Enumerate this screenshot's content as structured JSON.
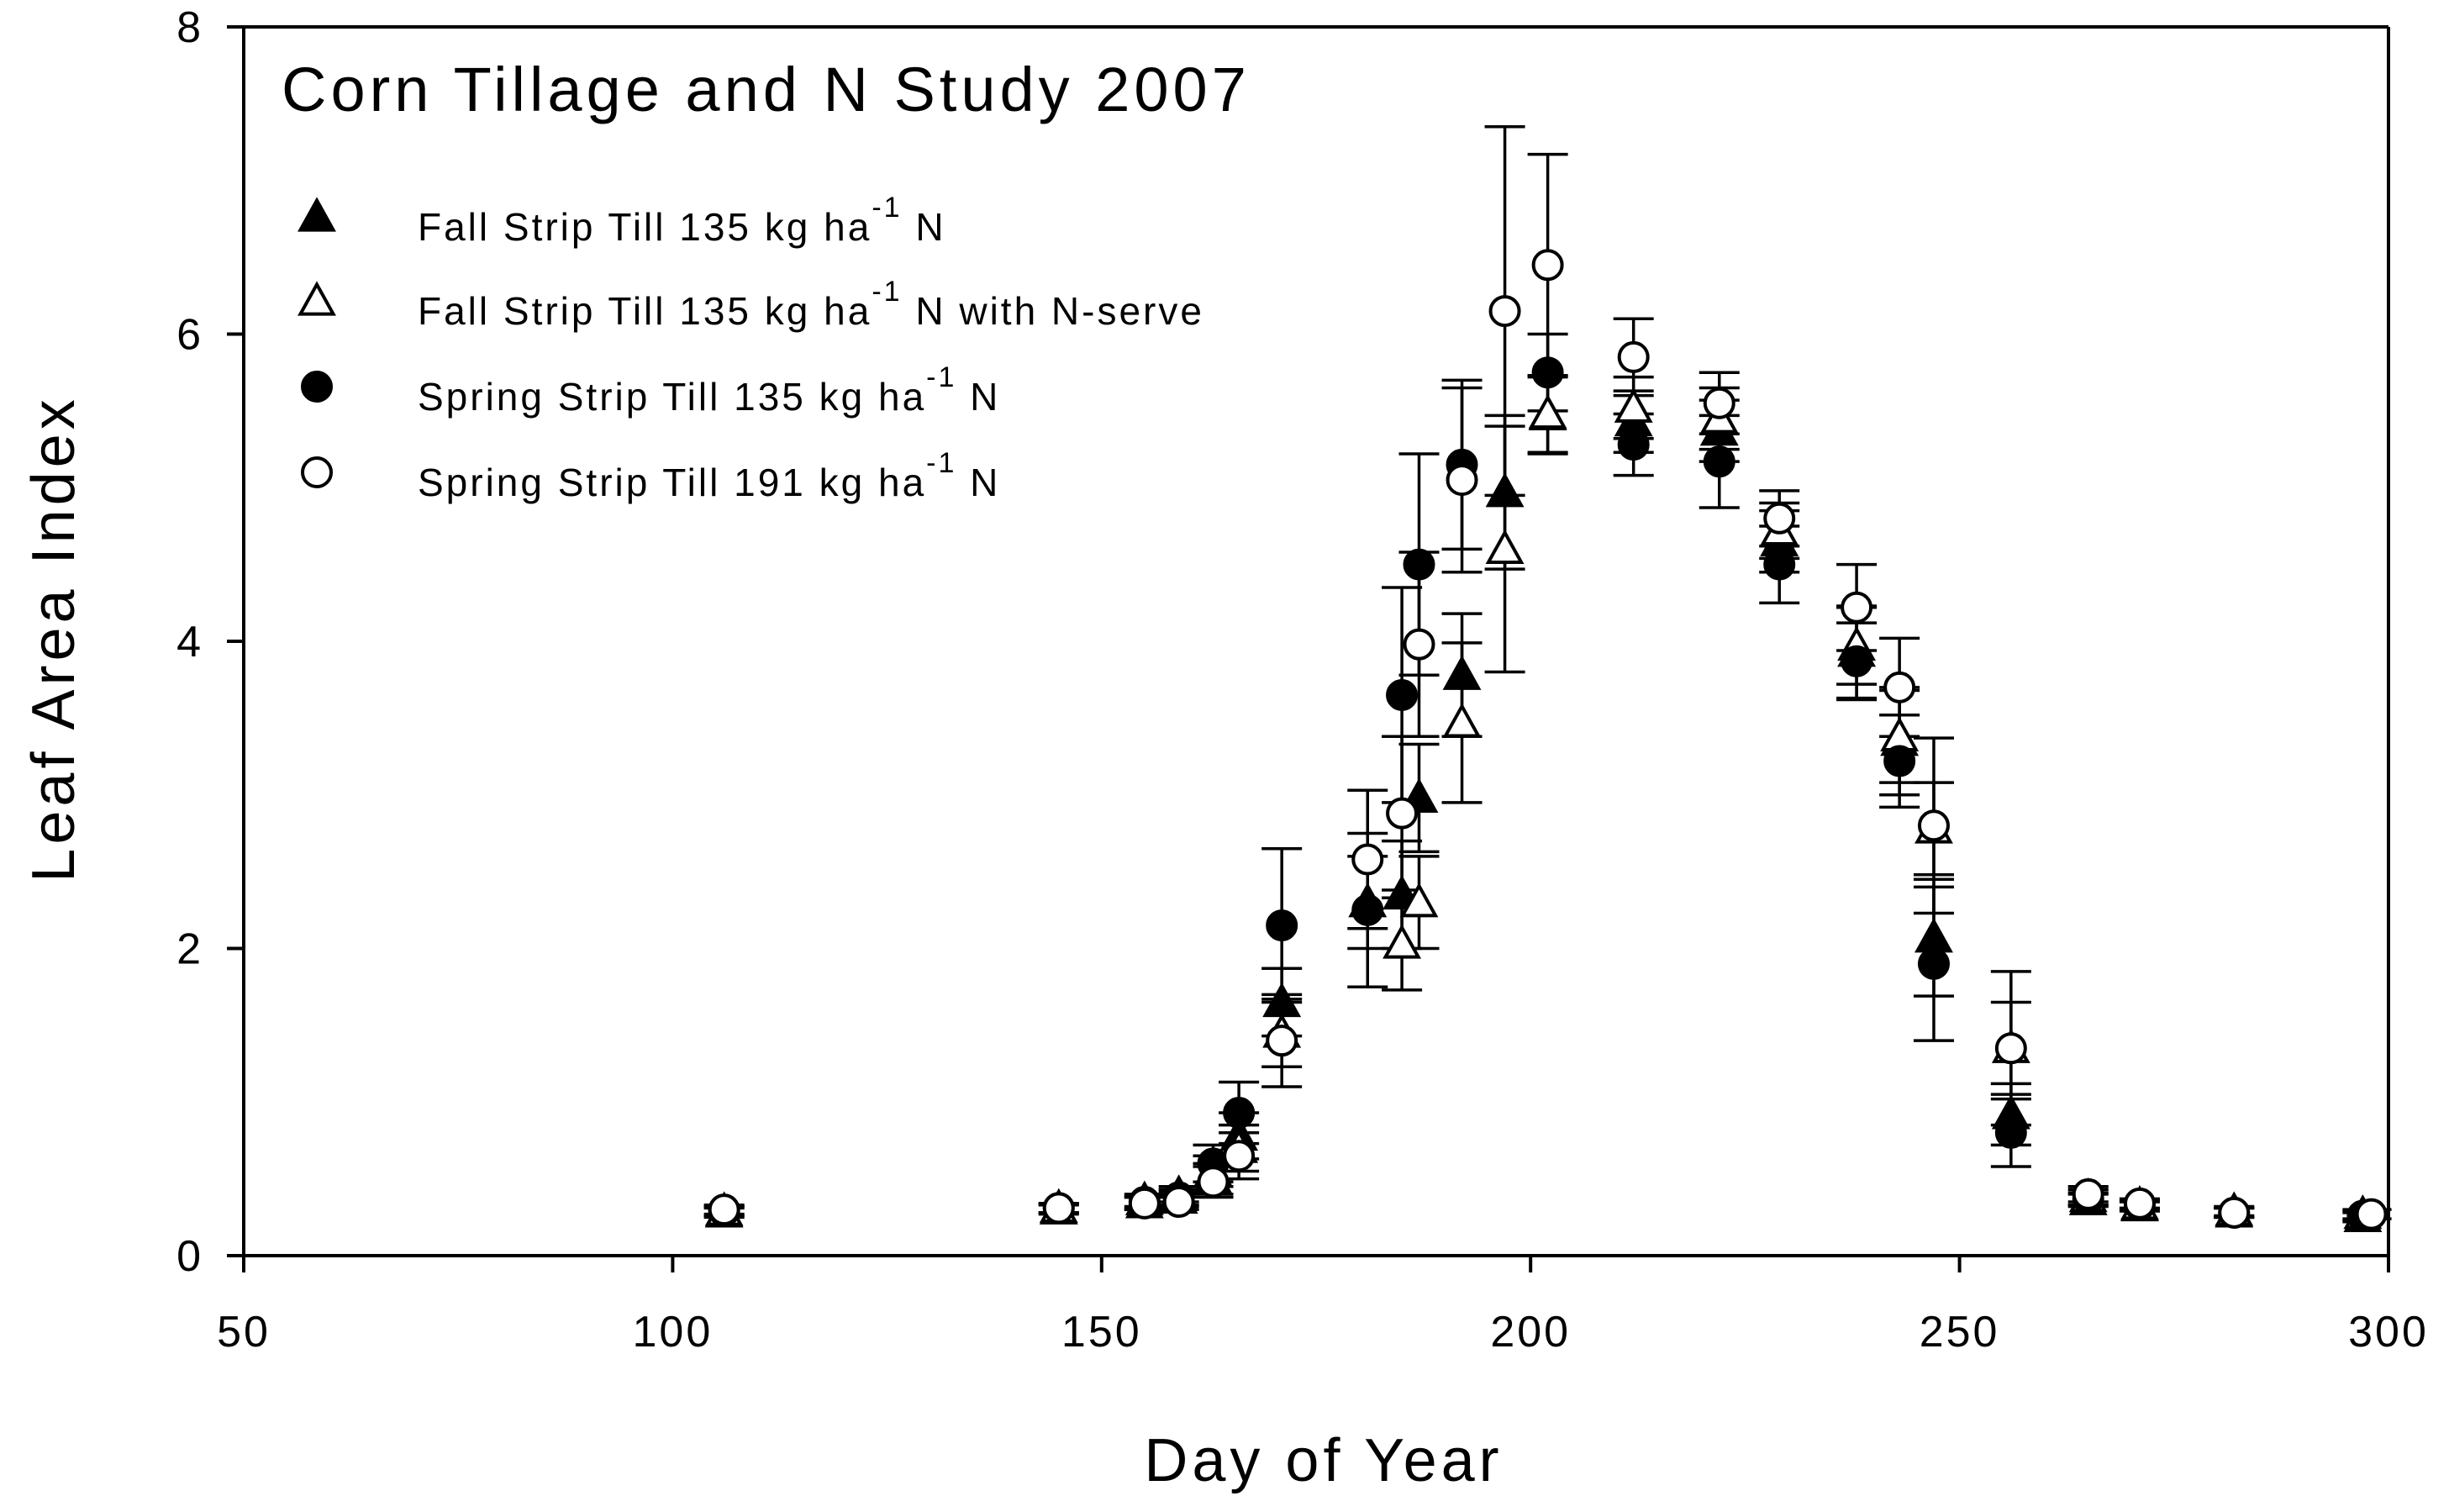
{
  "chart_data": {
    "type": "scatter",
    "title": "Corn Tillage and N Study 2007",
    "xlabel": "Day of Year",
    "ylabel": "Leaf Area Index",
    "xlim": [
      50,
      300
    ],
    "ylim": [
      0,
      8
    ],
    "xticks": [
      "50",
      "100",
      "150",
      "200",
      "250",
      "300"
    ],
    "yticks": [
      "0",
      "2",
      "4",
      "6",
      "8"
    ],
    "grid": false,
    "legend_position": "top-left",
    "legend_unit_base": "kg ha",
    "legend_unit_exp": "-1",
    "series": [
      {
        "name": "Fall Strip Till 135 kg ha-1 N",
        "label_before": "Fall Strip Till 135",
        "label_after": "N",
        "marker": "triangle-filled",
        "points": [
          {
            "x": 106,
            "y": 0.28,
            "err": 0.03
          },
          {
            "x": 145,
            "y": 0.3,
            "err": 0.03
          },
          {
            "x": 155,
            "y": 0.34,
            "err": 0.04
          },
          {
            "x": 159,
            "y": 0.37,
            "err": 0.05
          },
          {
            "x": 163,
            "y": 0.55,
            "err": 0.1
          },
          {
            "x": 166,
            "y": 0.78,
            "err": 0.15
          },
          {
            "x": 171,
            "y": 1.65,
            "err": 0.22
          },
          {
            "x": 181,
            "y": 2.3,
            "err": 0.3
          },
          {
            "x": 185,
            "y": 2.35,
            "err": 0.35
          },
          {
            "x": 187,
            "y": 2.98,
            "err": 0.35
          },
          {
            "x": 192,
            "y": 3.78,
            "err": 0.4
          },
          {
            "x": 197,
            "y": 4.97,
            "err": 0.5
          },
          {
            "x": 202,
            "y": 5.47,
            "err": 0.25
          },
          {
            "x": 212,
            "y": 5.43,
            "err": 0.2
          },
          {
            "x": 222,
            "y": 5.37,
            "err": 0.2
          },
          {
            "x": 229,
            "y": 4.65,
            "err": 0.2
          },
          {
            "x": 238,
            "y": 3.93,
            "err": 0.3
          },
          {
            "x": 243,
            "y": 3.35,
            "err": 0.35
          },
          {
            "x": 247,
            "y": 2.07,
            "err": 0.38
          },
          {
            "x": 256,
            "y": 0.92,
            "err": 0.2
          },
          {
            "x": 265,
            "y": 0.36,
            "err": 0.04
          },
          {
            "x": 271,
            "y": 0.32,
            "err": 0.03
          },
          {
            "x": 282,
            "y": 0.28,
            "err": 0.03
          },
          {
            "x": 297,
            "y": 0.25,
            "err": 0.03
          }
        ]
      },
      {
        "name": "Fall Strip Till 135 kg ha-1 N with N-serve",
        "label_before": "Fall Strip Till 135",
        "label_after": "N with N-serve",
        "marker": "triangle-open",
        "points": [
          {
            "x": 106,
            "y": 0.29,
            "err": 0.03
          },
          {
            "x": 145,
            "y": 0.31,
            "err": 0.03
          },
          {
            "x": 155,
            "y": 0.36,
            "err": 0.04
          },
          {
            "x": 159,
            "y": 0.4,
            "err": 0.05
          },
          {
            "x": 163,
            "y": 0.5,
            "err": 0.1
          },
          {
            "x": 166,
            "y": 0.7,
            "err": 0.15
          },
          {
            "x": 171,
            "y": 1.45,
            "err": 0.22
          },
          {
            "x": 185,
            "y": 2.03,
            "err": 0.3
          },
          {
            "x": 187,
            "y": 2.3,
            "err": 0.3
          },
          {
            "x": 192,
            "y": 3.47,
            "err": 0.52
          },
          {
            "x": 197,
            "y": 4.6,
            "err": 0.8
          },
          {
            "x": 202,
            "y": 5.48,
            "err": 0.25
          },
          {
            "x": 212,
            "y": 5.52,
            "err": 0.2
          },
          {
            "x": 222,
            "y": 5.45,
            "err": 0.2
          },
          {
            "x": 229,
            "y": 4.72,
            "err": 0.18
          },
          {
            "x": 238,
            "y": 3.97,
            "err": 0.25
          },
          {
            "x": 243,
            "y": 3.38,
            "err": 0.3
          },
          {
            "x": 247,
            "y": 2.78,
            "err": 0.3
          },
          {
            "x": 256,
            "y": 1.35,
            "err": 0.3
          },
          {
            "x": 265,
            "y": 0.38,
            "err": 0.05
          },
          {
            "x": 271,
            "y": 0.33,
            "err": 0.03
          },
          {
            "x": 282,
            "y": 0.29,
            "err": 0.03
          },
          {
            "x": 297,
            "y": 0.27,
            "err": 0.03
          }
        ]
      },
      {
        "name": "Spring Strip Till 135 kg ha-1 N",
        "label_before": "Spring Strip Till 135",
        "label_after": "N",
        "marker": "circle-filled",
        "points": [
          {
            "x": 106,
            "y": 0.29,
            "err": 0.03
          },
          {
            "x": 145,
            "y": 0.31,
            "err": 0.03
          },
          {
            "x": 155,
            "y": 0.35,
            "err": 0.04
          },
          {
            "x": 159,
            "y": 0.38,
            "err": 0.05
          },
          {
            "x": 163,
            "y": 0.6,
            "err": 0.12
          },
          {
            "x": 166,
            "y": 0.93,
            "err": 0.2
          },
          {
            "x": 171,
            "y": 2.15,
            "err": 0.5
          },
          {
            "x": 181,
            "y": 2.25,
            "err": 0.5
          },
          {
            "x": 185,
            "y": 3.65,
            "err": 0.7
          },
          {
            "x": 187,
            "y": 4.5,
            "err": 0.72
          },
          {
            "x": 192,
            "y": 5.15,
            "err": 0.55
          },
          {
            "x": 202,
            "y": 5.75,
            "err": 0.25
          },
          {
            "x": 212,
            "y": 5.28,
            "err": 0.2
          },
          {
            "x": 222,
            "y": 5.17,
            "err": 0.3
          },
          {
            "x": 229,
            "y": 4.5,
            "err": 0.25
          },
          {
            "x": 238,
            "y": 3.87,
            "err": 0.25
          },
          {
            "x": 243,
            "y": 3.22,
            "err": 0.3
          },
          {
            "x": 247,
            "y": 1.9,
            "err": 0.5
          },
          {
            "x": 256,
            "y": 0.8,
            "err": 0.22
          },
          {
            "x": 265,
            "y": 0.37,
            "err": 0.04
          },
          {
            "x": 271,
            "y": 0.33,
            "err": 0.03
          },
          {
            "x": 282,
            "y": 0.28,
            "err": 0.03
          },
          {
            "x": 297,
            "y": 0.26,
            "err": 0.03
          }
        ]
      },
      {
        "name": "Spring Strip Till 191 kg ha-1 N",
        "label_before": "Spring Strip Till 191",
        "label_after": "N",
        "marker": "circle-open",
        "points": [
          {
            "x": 106,
            "y": 0.3,
            "err": 0.03
          },
          {
            "x": 145,
            "y": 0.31,
            "err": 0.03
          },
          {
            "x": 155,
            "y": 0.34,
            "err": 0.04
          },
          {
            "x": 159,
            "y": 0.35,
            "err": 0.05
          },
          {
            "x": 163,
            "y": 0.48,
            "err": 0.1
          },
          {
            "x": 166,
            "y": 0.65,
            "err": 0.15
          },
          {
            "x": 171,
            "y": 1.4,
            "err": 0.3
          },
          {
            "x": 181,
            "y": 2.58,
            "err": 0.45
          },
          {
            "x": 185,
            "y": 2.88,
            "err": 0.5
          },
          {
            "x": 187,
            "y": 3.98,
            "err": 0.6
          },
          {
            "x": 192,
            "y": 5.05,
            "err": 0.6
          },
          {
            "x": 197,
            "y": 6.15,
            "err": 1.2
          },
          {
            "x": 202,
            "y": 6.45,
            "err": 0.72
          },
          {
            "x": 212,
            "y": 5.85,
            "err": 0.25
          },
          {
            "x": 222,
            "y": 5.55,
            "err": 0.2
          },
          {
            "x": 229,
            "y": 4.8,
            "err": 0.18
          },
          {
            "x": 238,
            "y": 4.22,
            "err": 0.28
          },
          {
            "x": 243,
            "y": 3.7,
            "err": 0.32
          },
          {
            "x": 247,
            "y": 2.8,
            "err": 0.57
          },
          {
            "x": 256,
            "y": 1.35,
            "err": 0.5
          },
          {
            "x": 265,
            "y": 0.4,
            "err": 0.05
          },
          {
            "x": 271,
            "y": 0.34,
            "err": 0.03
          },
          {
            "x": 282,
            "y": 0.28,
            "err": 0.03
          },
          {
            "x": 298,
            "y": 0.27,
            "err": 0.03
          }
        ]
      }
    ]
  }
}
